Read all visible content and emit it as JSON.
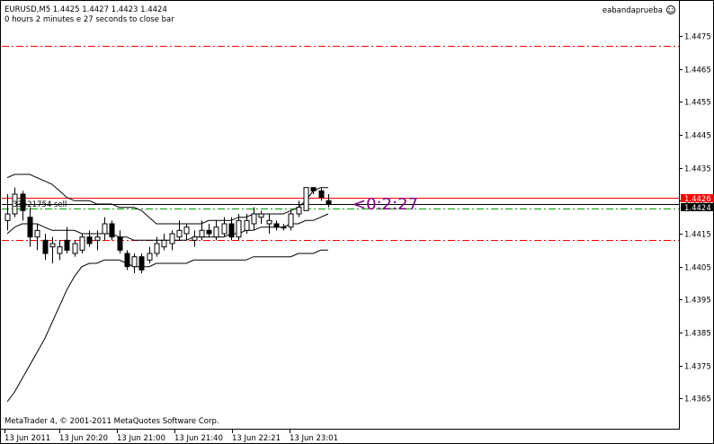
{
  "header": {
    "symbol_line": "EURUSD,M5  1.4425 1.4427 1.4423 1.4424",
    "timer_line": "0 hours 2 minutes e 27 seconds to close bar"
  },
  "indicator_name": "eabandaprueba",
  "smile_icon": "smiley-face-icon",
  "order_label": "33521754 sell",
  "countdown_label": "<0:2:27",
  "copyright": "MetaTrader 4, © 2001-2011 MetaQuotes Software Corp.",
  "price_axis": {
    "ticks": [
      "1.4475",
      "1.4465",
      "1.4455",
      "1.4445",
      "1.4435",
      "1.4425",
      "1.4415",
      "1.4405",
      "1.4395",
      "1.4385",
      "1.4375",
      "1.4365"
    ],
    "bid_label": "1.4424",
    "ask_label": "1.4426"
  },
  "time_axis": {
    "labels": [
      "13 Jun 2011",
      "13 Jun 20:20",
      "13 Jun 21:00",
      "13 Jun 21:40",
      "13 Jun 22:21",
      "13 Jun 23:01"
    ]
  },
  "colors": {
    "bid_line": "#000000",
    "ask_line": "#ff0000",
    "level_lines": "#ff0000",
    "order_line": "#00a000",
    "countdown": "#800080",
    "bid_box": "#000000",
    "ask_box": "#ff0000"
  },
  "chart_data": {
    "type": "candlestick",
    "symbol": "EURUSD",
    "timeframe": "M5",
    "ylim": [
      1.4361,
      1.4481
    ],
    "levels": {
      "bid": 1.4424,
      "ask": 1.4426,
      "order_line": 1.44225,
      "upper_dashdot": 1.4472,
      "lower_dashdot": 1.44131
    },
    "candles": [
      [
        1.4419,
        1.4427,
        1.4416,
        1.4421
      ],
      [
        1.4421,
        1.4429,
        1.442,
        1.4427
      ],
      [
        1.4427,
        1.4428,
        1.4419,
        1.4422
      ],
      [
        1.442,
        1.4423,
        1.4411,
        1.4414
      ],
      [
        1.4414,
        1.4418,
        1.441,
        1.4416
      ],
      [
        1.4413,
        1.4415,
        1.4407,
        1.4409
      ],
      [
        1.4411,
        1.4414,
        1.4406,
        1.4412
      ],
      [
        1.4409,
        1.4413,
        1.4407,
        1.4411
      ],
      [
        1.4413,
        1.4417,
        1.4409,
        1.441
      ],
      [
        1.4409,
        1.4413,
        1.4408,
        1.4412
      ],
      [
        1.441,
        1.4415,
        1.4409,
        1.4414
      ],
      [
        1.4414,
        1.4416,
        1.4411,
        1.4412
      ],
      [
        1.4413,
        1.4416,
        1.441,
        1.4414
      ],
      [
        1.4415,
        1.442,
        1.4413,
        1.4418
      ],
      [
        1.4418,
        1.4419,
        1.4413,
        1.4414
      ],
      [
        1.4414,
        1.4416,
        1.4409,
        1.441
      ],
      [
        1.4409,
        1.441,
        1.4404,
        1.4405
      ],
      [
        1.4405,
        1.4409,
        1.4403,
        1.4408
      ],
      [
        1.4408,
        1.4409,
        1.4403,
        1.4404
      ],
      [
        1.4407,
        1.4411,
        1.4406,
        1.4409
      ],
      [
        1.4409,
        1.4414,
        1.4408,
        1.4412
      ],
      [
        1.4411,
        1.4415,
        1.441,
        1.4413
      ],
      [
        1.4412,
        1.4416,
        1.441,
        1.4415
      ],
      [
        1.4414,
        1.4419,
        1.4413,
        1.4416
      ],
      [
        1.4415,
        1.4418,
        1.4413,
        1.4417
      ],
      [
        1.4413,
        1.4416,
        1.4411,
        1.4414
      ],
      [
        1.4414,
        1.4419,
        1.4413,
        1.4416
      ],
      [
        1.4416,
        1.4418,
        1.4414,
        1.4415
      ],
      [
        1.4414,
        1.4419,
        1.4413,
        1.4417
      ],
      [
        1.4415,
        1.442,
        1.4414,
        1.4418
      ],
      [
        1.4418,
        1.442,
        1.4413,
        1.4414
      ],
      [
        1.4414,
        1.4421,
        1.4413,
        1.4419
      ],
      [
        1.4416,
        1.4421,
        1.4415,
        1.4419
      ],
      [
        1.4418,
        1.4423,
        1.4416,
        1.4421
      ],
      [
        1.442,
        1.4422,
        1.4418,
        1.4421
      ],
      [
        1.4418,
        1.4421,
        1.4415,
        1.4419
      ],
      [
        1.4418,
        1.4419,
        1.4416,
        1.4417
      ],
      [
        1.4417,
        1.4418,
        1.4416,
        1.4417
      ],
      [
        1.4417,
        1.4422,
        1.4416,
        1.4421
      ],
      [
        1.4421,
        1.4425,
        1.442,
        1.4423
      ],
      [
        1.4422,
        1.4429,
        1.4422,
        1.4429
      ],
      [
        1.4429,
        1.4429,
        1.4427,
        1.4428
      ],
      [
        1.4428,
        1.4429,
        1.4425,
        1.4426
      ],
      [
        1.4425,
        1.4427,
        1.4423,
        1.4424
      ]
    ],
    "bands": {
      "upper": [
        1.4432,
        1.4433,
        1.4433,
        1.4433,
        1.4432,
        1.4431,
        1.443,
        1.4428,
        1.4426,
        1.4425,
        1.4425,
        1.4425,
        1.4424,
        1.4424,
        1.4424,
        1.4423,
        1.4423,
        1.4423,
        1.4422,
        1.442,
        1.4418,
        1.4418,
        1.4418,
        1.4418,
        1.4418,
        1.4418,
        1.4418,
        1.4419,
        1.4419,
        1.4419,
        1.4419,
        1.442,
        1.442,
        1.4421,
        1.4421,
        1.4421,
        1.4421,
        1.4421,
        1.4422,
        1.4423,
        1.4425,
        1.4428,
        1.4429,
        1.4429
      ],
      "middle": [
        1.4415,
        1.4417,
        1.4418,
        1.4418,
        1.4418,
        1.4417,
        1.4416,
        1.4416,
        1.4416,
        1.4416,
        1.4415,
        1.4415,
        1.4415,
        1.4415,
        1.4415,
        1.4414,
        1.4414,
        1.4413,
        1.4413,
        1.4413,
        1.4413,
        1.4413,
        1.4413,
        1.4413,
        1.4413,
        1.4414,
        1.4414,
        1.4414,
        1.4414,
        1.4414,
        1.4415,
        1.4415,
        1.4416,
        1.4416,
        1.4417,
        1.4417,
        1.4417,
        1.4417,
        1.4418,
        1.4418,
        1.4419,
        1.4419,
        1.442,
        1.4421
      ],
      "lower": [
        1.4364,
        1.4367,
        1.4371,
        1.4375,
        1.4379,
        1.4383,
        1.4388,
        1.4393,
        1.4398,
        1.4402,
        1.4405,
        1.4406,
        1.4406,
        1.4407,
        1.4407,
        1.4407,
        1.4406,
        1.4405,
        1.4405,
        1.4405,
        1.4406,
        1.4406,
        1.4406,
        1.4406,
        1.4406,
        1.4407,
        1.4407,
        1.4407,
        1.4407,
        1.4407,
        1.4407,
        1.4407,
        1.4407,
        1.4408,
        1.4408,
        1.4408,
        1.4408,
        1.4408,
        1.4408,
        1.4409,
        1.4409,
        1.4409,
        1.441,
        1.441
      ]
    }
  }
}
